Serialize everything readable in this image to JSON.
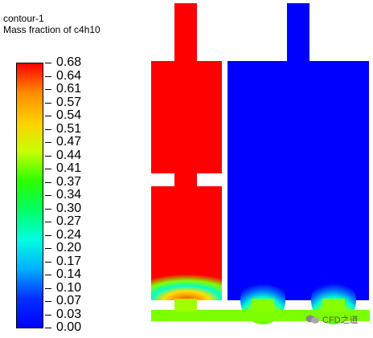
{
  "title": {
    "line1": "contour-1",
    "line2": "Mass fraction of c4h10"
  },
  "legend": {
    "labels": [
      "0.68",
      "0.64",
      "0.61",
      "0.57",
      "0.54",
      "0.51",
      "0.47",
      "0.44",
      "0.41",
      "0.37",
      "0.34",
      "0.30",
      "0.27",
      "0.24",
      "0.20",
      "0.17",
      "0.14",
      "0.10",
      "0.07",
      "0.03",
      "0.00"
    ],
    "gradient_colors": [
      "#ff0000",
      "#ff8c00",
      "#ffd000",
      "#c8ff00",
      "#2cff00",
      "#00ff66",
      "#00ffe0",
      "#00b0ff",
      "#0030ff",
      "#0000ff"
    ]
  },
  "colors": {
    "high": "#ff0000",
    "low": "#0000ff",
    "mid": "#7cff00"
  },
  "watermark": {
    "icon": "wechat-icon",
    "text": "CFD之道"
  }
}
